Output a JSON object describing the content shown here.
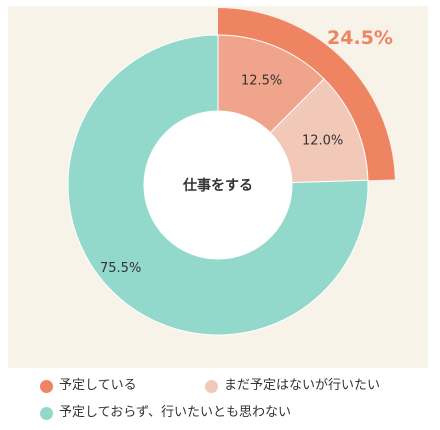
{
  "chart_data": {
    "type": "pie",
    "center_label": "仕事をする",
    "slices": [
      {
        "label": "予定している",
        "value": 12.5,
        "display": "12.5%",
        "color": "#f0a48c"
      },
      {
        "label": "まだ予定はないが行いたい",
        "value": 12.0,
        "display": "12.0%",
        "color": "#f2c8b9"
      },
      {
        "label": "予定しておらず、行いたいとも思わない",
        "value": 75.5,
        "display": "75.5%",
        "color": "#93d9cb"
      }
    ],
    "outer_arc": {
      "value": 24.5,
      "display": "24.5%",
      "color": "#ef8463"
    },
    "legend": [
      {
        "label": "予定している",
        "color": "#ef8463"
      },
      {
        "label": "まだ予定はないが行いたい",
        "color": "#f2c8b9"
      },
      {
        "label": "予定しておらず、行いたいとも思わない",
        "color": "#93d9cb"
      }
    ]
  }
}
